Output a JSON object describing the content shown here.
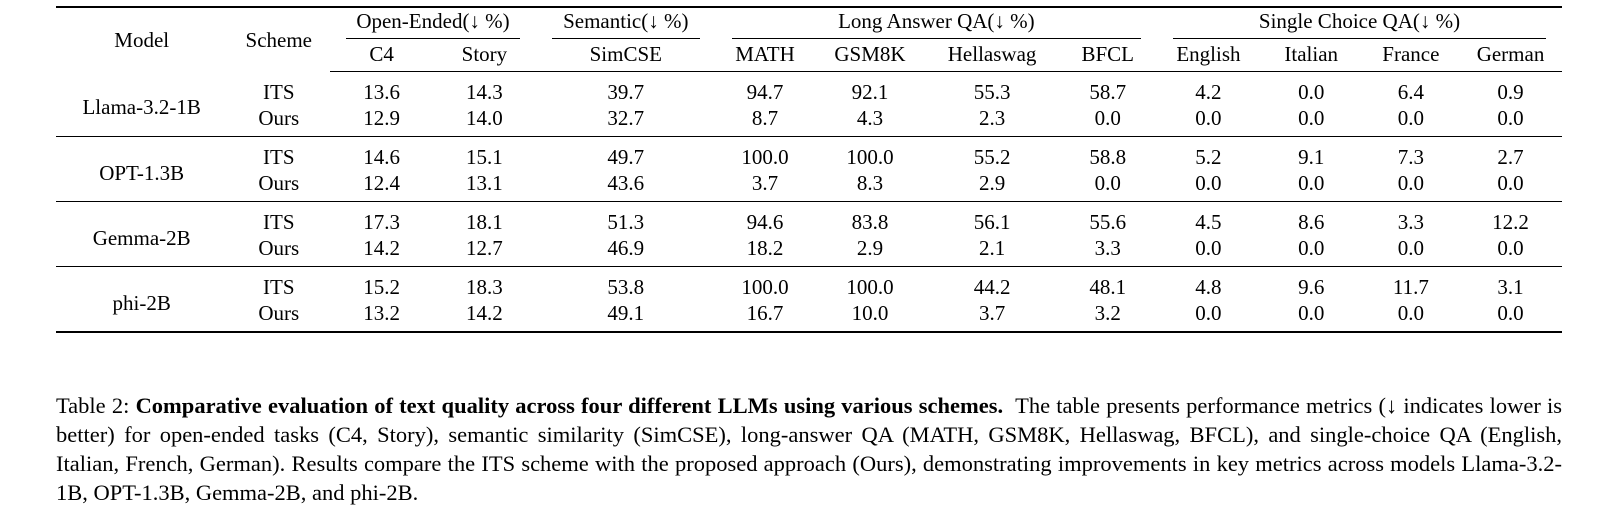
{
  "table": {
    "header": {
      "model": "Model",
      "scheme": "Scheme",
      "groups": [
        {
          "label": "Open-Ended(↓ %)",
          "cols": [
            "C4",
            "Story"
          ]
        },
        {
          "label": "Semantic(↓ %)",
          "cols": [
            "SimCSE"
          ]
        },
        {
          "label": "Long Answer QA(↓ %)",
          "cols": [
            "MATH",
            "GSM8K",
            "Hellaswag",
            "BFCL"
          ]
        },
        {
          "label": "Single Choice QA(↓ %)",
          "cols": [
            "English",
            "Italian",
            "France",
            "German"
          ]
        }
      ]
    },
    "rows": [
      {
        "model": "Llama-3.2-1B",
        "its": {
          "scheme": "ITS",
          "values": [
            "13.6",
            "14.3",
            "39.7",
            "94.7",
            "92.1",
            "55.3",
            "58.7",
            "4.2",
            "0.0",
            "6.4",
            "0.9"
          ]
        },
        "ours": {
          "scheme": "Ours",
          "values": [
            "12.9",
            "14.0",
            "32.7",
            "8.7",
            "4.3",
            "2.3",
            "0.0",
            "0.0",
            "0.0",
            "0.0",
            "0.0"
          ]
        }
      },
      {
        "model": "OPT-1.3B",
        "its": {
          "scheme": "ITS",
          "values": [
            "14.6",
            "15.1",
            "49.7",
            "100.0",
            "100.0",
            "55.2",
            "58.8",
            "5.2",
            "9.1",
            "7.3",
            "2.7"
          ]
        },
        "ours": {
          "scheme": "Ours",
          "values": [
            "12.4",
            "13.1",
            "43.6",
            "3.7",
            "8.3",
            "2.9",
            "0.0",
            "0.0",
            "0.0",
            "0.0",
            "0.0"
          ]
        }
      },
      {
        "model": "Gemma-2B",
        "its": {
          "scheme": "ITS",
          "values": [
            "17.3",
            "18.1",
            "51.3",
            "94.6",
            "83.8",
            "56.1",
            "55.6",
            "4.5",
            "8.6",
            "3.3",
            "12.2"
          ]
        },
        "ours": {
          "scheme": "Ours",
          "values": [
            "14.2",
            "12.7",
            "46.9",
            "18.2",
            "2.9",
            "2.1",
            "3.3",
            "0.0",
            "0.0",
            "0.0",
            "0.0"
          ]
        }
      },
      {
        "model": "phi-2B",
        "its": {
          "scheme": "ITS",
          "values": [
            "15.2",
            "18.3",
            "53.8",
            "100.0",
            "100.0",
            "44.2",
            "48.1",
            "4.8",
            "9.6",
            "11.7",
            "3.1"
          ]
        },
        "ours": {
          "scheme": "Ours",
          "values": [
            "13.2",
            "14.2",
            "49.1",
            "16.7",
            "10.0",
            "3.7",
            "3.2",
            "0.0",
            "0.0",
            "0.0",
            "0.0"
          ]
        }
      }
    ]
  },
  "caption": {
    "label": "Table 2:",
    "bold_title": "Comparative evaluation of text quality across four different LLMs using various schemes.",
    "body": "The table presents performance metrics (↓ indicates lower is better) for open-ended tasks (C4, Story), semantic similarity (SimCSE), long-answer QA (MATH, GSM8K, Hellaswag, BFCL), and single-choice QA (English, Italian, French, German). Results compare the ITS scheme with the proposed approach (Ours), demonstrating improvements in key metrics across models Llama-3.2-1B, OPT-1.3B, Gemma-2B, and phi-2B."
  }
}
